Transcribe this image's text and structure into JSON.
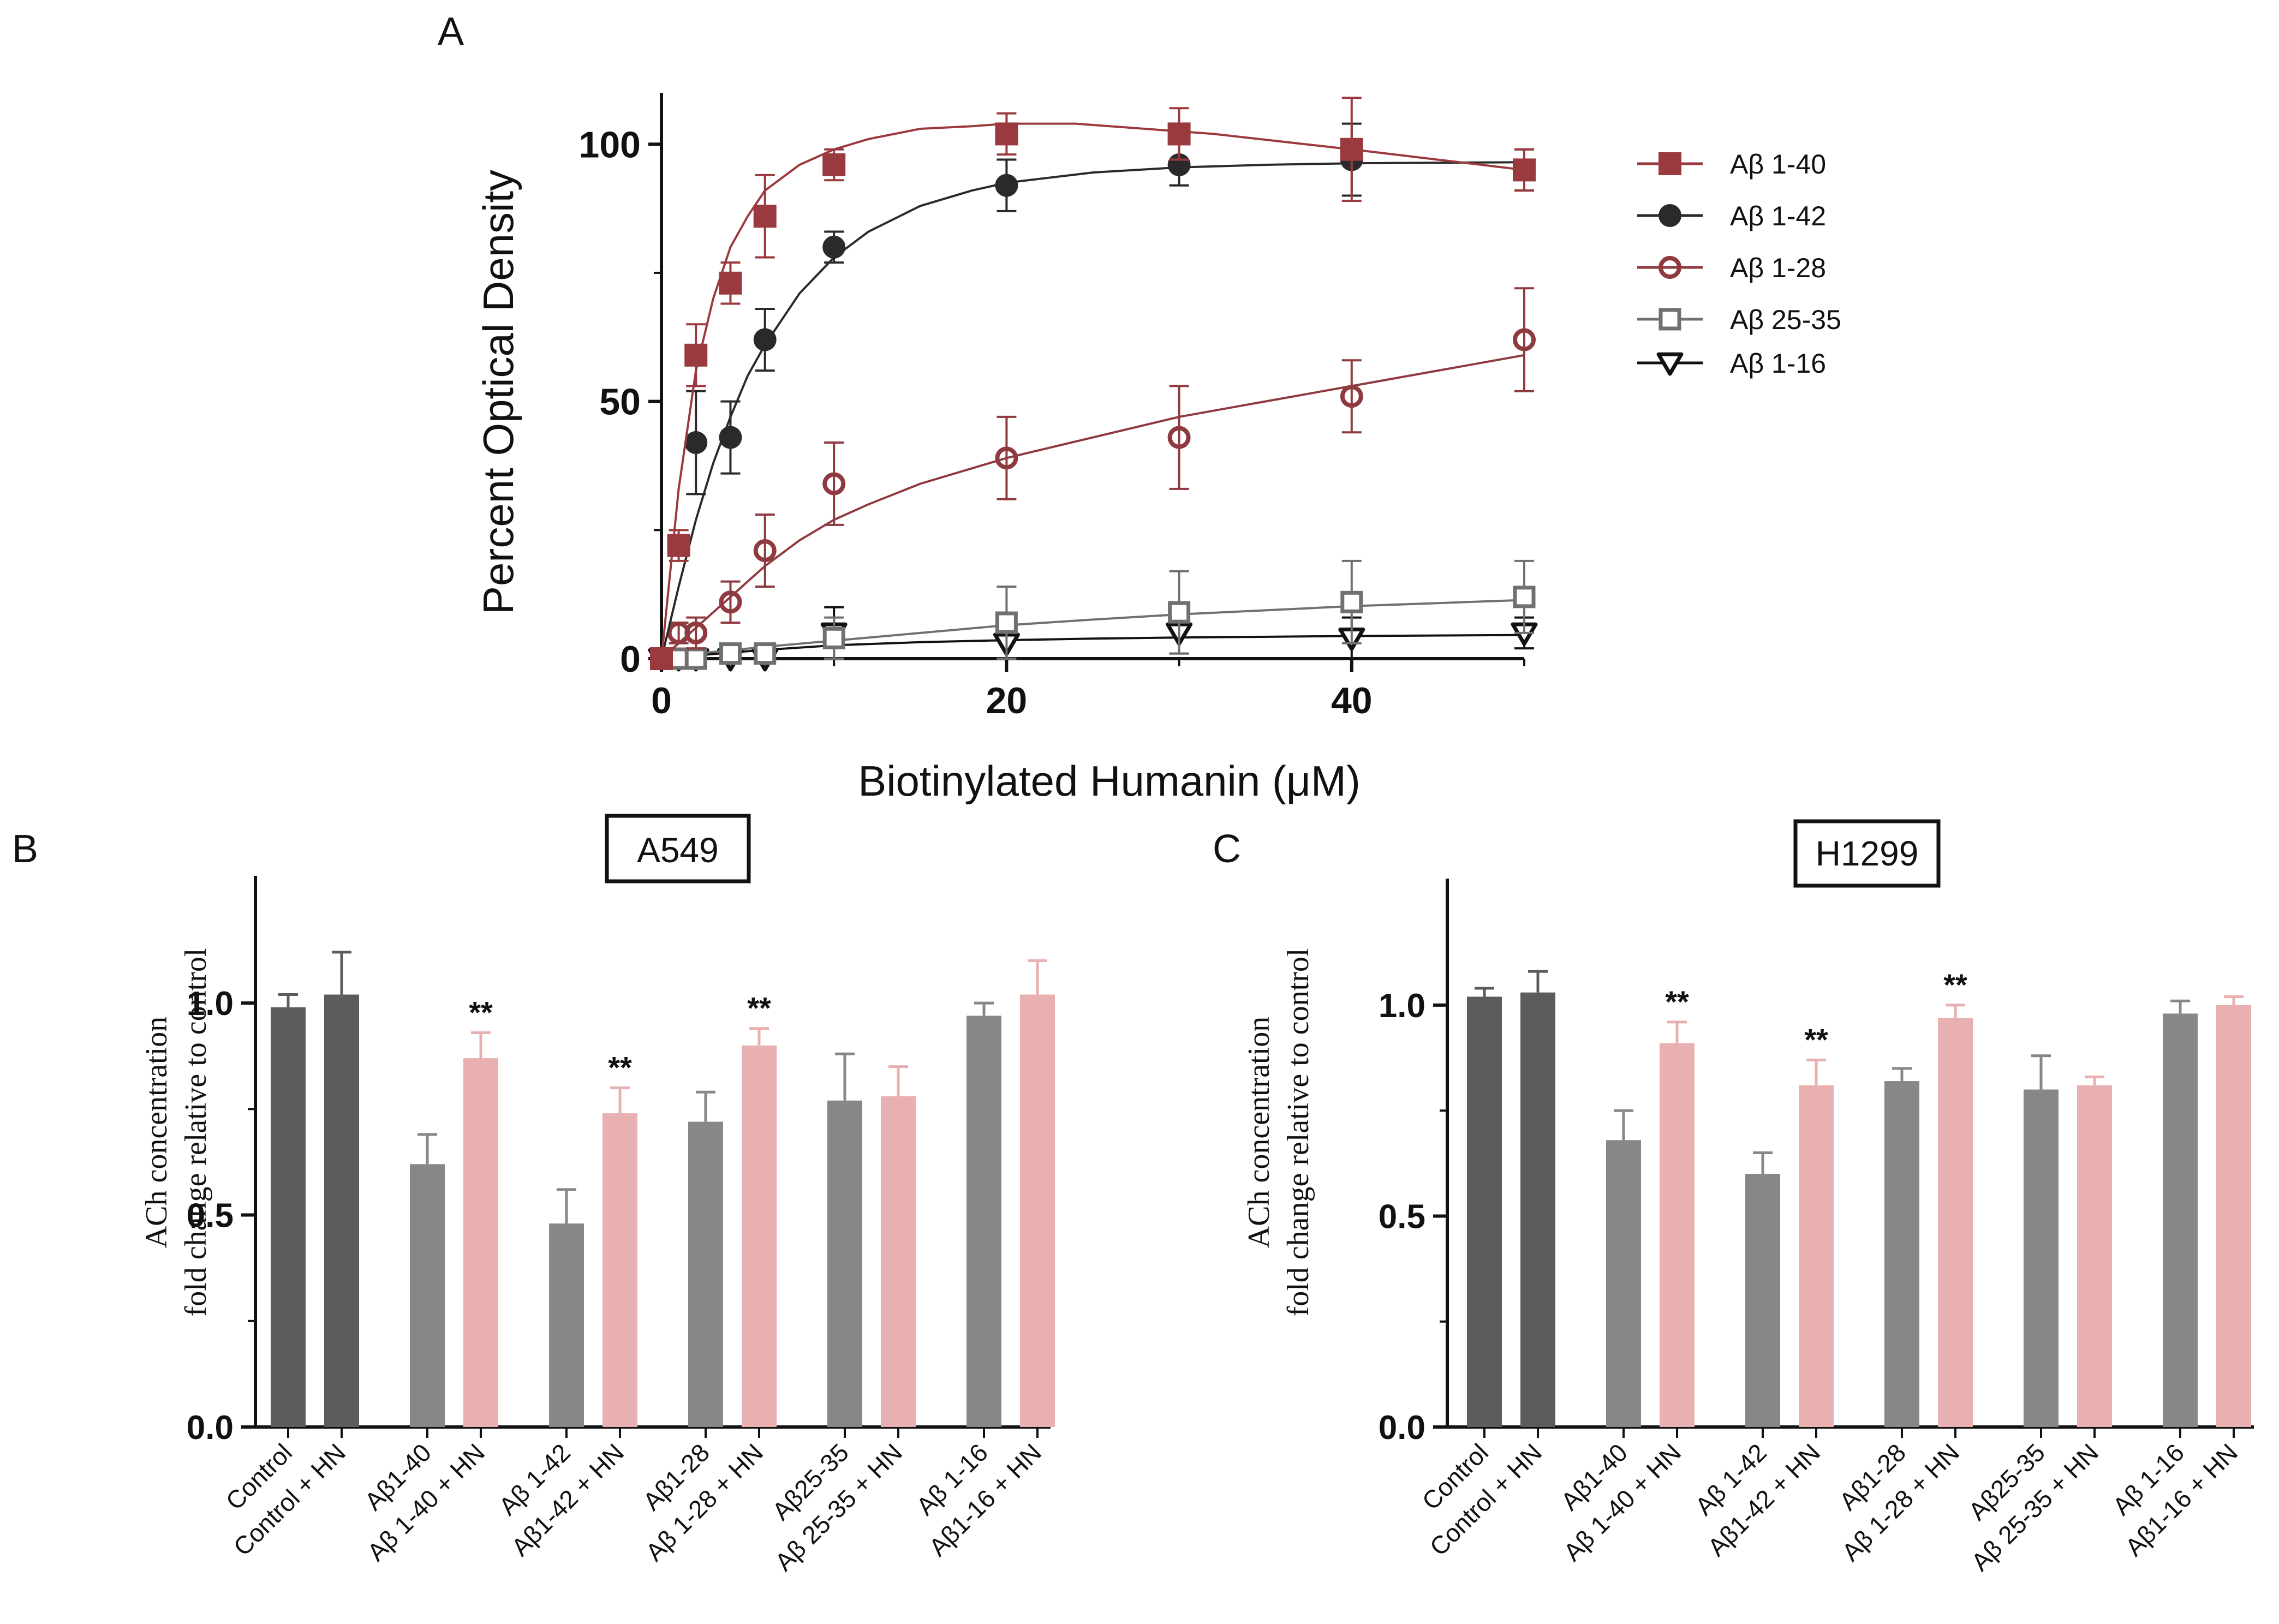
{
  "panels": {
    "a": {
      "letter": "A"
    },
    "b": {
      "letter": "B",
      "cell_line": "A549"
    },
    "c": {
      "letter": "C",
      "cell_line": "H1299"
    }
  },
  "colors": {
    "ab1_40": "#9b3a3e",
    "ab1_42": "#2a2a2a",
    "ab1_28": "#8e3a3f",
    "ab25_35": "#707070",
    "ab1_16": "#111111",
    "bar_dark": "#5c5c5c",
    "bar_gray": "#878787",
    "bar_pink": "#e8b0b0"
  },
  "chart_data": [
    {
      "id": "A",
      "type": "scatter",
      "xlabel": "Biotinylated Humanin (μM)",
      "ylabel": "Percent Optical Density",
      "xlim": [
        0,
        50
      ],
      "ylim": [
        0,
        110
      ],
      "xticks": [
        "0",
        "20",
        "40"
      ],
      "yticks": [
        "0",
        "50",
        "100"
      ],
      "legend_position": "right",
      "series": [
        {
          "name": "Aβ 1-40",
          "marker": "filled-square",
          "color": "#9b3a3e",
          "x": [
            0,
            1,
            2,
            4,
            6,
            10,
            20,
            30,
            40,
            50
          ],
          "y": [
            0,
            22,
            59,
            73,
            86,
            96,
            102,
            102,
            99,
            95
          ],
          "err": [
            1,
            3,
            6,
            4,
            8,
            3,
            4,
            5,
            10,
            4
          ],
          "fit": {
            "x": [
              0,
              1,
              2,
              3,
              4,
              5,
              6,
              8,
              10,
              12,
              15,
              18,
              20,
              24,
              28,
              32,
              36,
              40,
              45,
              50
            ],
            "y": [
              0,
              33,
              56,
              70,
              80,
              86,
              91,
              96,
              99,
              101,
              103,
              103.5,
              104,
              104,
              103,
              102,
              100.5,
              99,
              97,
              95
            ]
          }
        },
        {
          "name": "Aβ 1-42",
          "marker": "filled-circle",
          "color": "#2a2a2a",
          "x": [
            0,
            1,
            2,
            4,
            6,
            10,
            20,
            30,
            40,
            50
          ],
          "y": [
            0,
            22,
            42,
            43,
            62,
            80,
            92,
            96,
            97,
            95
          ],
          "err": [
            1,
            2,
            10,
            7,
            6,
            3,
            5,
            4,
            7,
            4
          ],
          "fit": {
            "x": [
              0,
              1,
              2,
              3,
              4,
              5,
              6,
              8,
              10,
              12,
              15,
              18,
              20,
              25,
              30,
              35,
              40,
              45,
              50
            ],
            "y": [
              0,
              14,
              27,
              38,
              47,
              55,
              61,
              71,
              78,
              83,
              88,
              91,
              92.5,
              94.5,
              95.5,
              96,
              96.3,
              96.4,
              96.5
            ]
          }
        },
        {
          "name": "Aβ 1-28",
          "marker": "open-circle",
          "color": "#8e3a3f",
          "x": [
            0,
            1,
            2,
            4,
            6,
            10,
            20,
            30,
            40,
            50
          ],
          "y": [
            0,
            5,
            5,
            11,
            21,
            34,
            39,
            43,
            51,
            62
          ],
          "err": [
            1,
            2,
            3,
            4,
            7,
            8,
            8,
            10,
            7,
            10
          ],
          "fit": {
            "x": [
              0,
              1,
              2,
              4,
              6,
              8,
              10,
              12,
              15,
              20,
              25,
              30,
              35,
              40,
              45,
              50
            ],
            "y": [
              0,
              3,
              6,
              12,
              18,
              23,
              27,
              30,
              34,
              39,
              43,
              47,
              50,
              53,
              56,
              59
            ]
          }
        },
        {
          "name": "Aβ 25-35",
          "marker": "open-square",
          "color": "#707070",
          "x": [
            0,
            1,
            2,
            4,
            6,
            10,
            20,
            30,
            40,
            50
          ],
          "y": [
            0,
            0,
            0,
            1,
            1,
            4,
            7,
            9,
            11,
            12
          ],
          "err": [
            0.5,
            1,
            1,
            1,
            1,
            4,
            7,
            8,
            8,
            7
          ],
          "fit": {
            "x": [
              0,
              2,
              4,
              6,
              10,
              15,
              20,
              25,
              30,
              35,
              40,
              45,
              50
            ],
            "y": [
              0,
              1,
              1.6,
              2.3,
              3.5,
              5,
              6.5,
              7.6,
              8.6,
              9.4,
              10.2,
              10.8,
              11.4
            ]
          }
        },
        {
          "name": "Aβ 1-16",
          "marker": "open-triangle-down",
          "color": "#111111",
          "x": [
            0,
            1,
            2,
            4,
            6,
            10,
            20,
            30,
            40,
            50
          ],
          "y": [
            0,
            0,
            0,
            0,
            0,
            5,
            3,
            5,
            4,
            5
          ],
          "err": [
            0.5,
            0.5,
            0.5,
            0.5,
            0.5,
            5,
            3,
            4,
            4,
            3
          ],
          "fit": {
            "x": [
              0,
              2,
              4,
              6,
              10,
              15,
              20,
              25,
              30,
              40,
              50
            ],
            "y": [
              0,
              0.6,
              1.2,
              1.7,
              2.6,
              3.2,
              3.6,
              3.9,
              4.1,
              4.4,
              4.6
            ]
          }
        }
      ]
    },
    {
      "id": "B",
      "type": "bar",
      "title": "A549",
      "ylabel_lines": [
        "ACh concentration",
        "fold change relative to control"
      ],
      "ylim": [
        0,
        1.3
      ],
      "yticks": [
        "0.0",
        "0.5",
        "1.0"
      ],
      "categories": [
        "Control",
        "Control + HN",
        "Aβ1-40",
        "Aβ 1-40 + HN",
        "Aβ 1-42",
        "Aβ1-42 + HN",
        "Aβ1-28",
        "Aβ 1-28 + HN",
        "Aβ25-35",
        "Aβ 25-35 + HN",
        "Aβ 1-16",
        "Aβ1-16 + HN"
      ],
      "values": [
        0.99,
        1.02,
        0.62,
        0.87,
        0.48,
        0.74,
        0.72,
        0.9,
        0.77,
        0.78,
        0.97,
        1.02
      ],
      "errors": [
        0.03,
        0.1,
        0.07,
        0.06,
        0.08,
        0.06,
        0.07,
        0.04,
        0.11,
        0.07,
        0.03,
        0.08
      ],
      "colors": [
        "dark",
        "dark",
        "gray",
        "pink",
        "gray",
        "pink",
        "gray",
        "pink",
        "gray",
        "pink",
        "gray",
        "pink"
      ],
      "significance": [
        "",
        "",
        "",
        "**",
        "",
        "**",
        "",
        "**",
        "",
        "",
        "",
        ""
      ]
    },
    {
      "id": "C",
      "type": "bar",
      "title": "H1299",
      "ylabel_lines": [
        "ACh concentration",
        "fold change relative to control"
      ],
      "ylim": [
        0,
        1.3
      ],
      "yticks": [
        "0.0",
        "0.5",
        "1.0"
      ],
      "categories": [
        "Control",
        "Control + HN",
        "Aβ1-40",
        "Aβ 1-40 + HN",
        "Aβ 1-42",
        "Aβ1-42 + HN",
        "Aβ1-28",
        "Aβ 1-28 + HN",
        "Aβ25-35",
        "Aβ 25-35 + HN",
        "Aβ 1-16",
        "Aβ1-16 + HN"
      ],
      "values": [
        1.02,
        1.03,
        0.68,
        0.91,
        0.6,
        0.81,
        0.82,
        0.97,
        0.8,
        0.81,
        0.98,
        1.0
      ],
      "errors": [
        0.02,
        0.05,
        0.07,
        0.05,
        0.05,
        0.06,
        0.03,
        0.03,
        0.08,
        0.02,
        0.03,
        0.02
      ],
      "colors": [
        "dark",
        "dark",
        "gray",
        "pink",
        "gray",
        "pink",
        "gray",
        "pink",
        "gray",
        "pink",
        "gray",
        "pink"
      ],
      "significance": [
        "",
        "",
        "",
        "**",
        "",
        "**",
        "",
        "**",
        "",
        "",
        "",
        ""
      ]
    }
  ]
}
